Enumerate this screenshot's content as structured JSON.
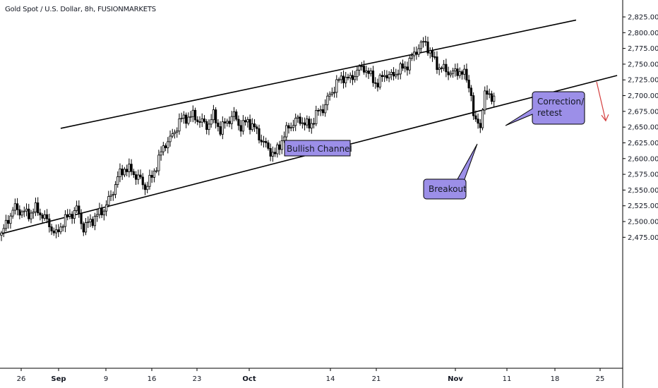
{
  "title": "Gold Spot / U.S. Dollar, 8h, FUSIONMARKETS",
  "colors": {
    "up_body": "#ffffff",
    "down_body": "#000000",
    "outline": "#000000",
    "callout_fill": "#9c8fe8",
    "arrow": "#d43e3e",
    "axis": "#000000"
  },
  "annotations": {
    "bullish_channel": "Bullish Channel",
    "breakout": "Breakout",
    "correction_line1": "Correction/",
    "correction_line2": "retest"
  },
  "chart_data": {
    "type": "candlestick",
    "title": "Gold Spot / U.S. Dollar, 8h, FUSIONMARKETS",
    "ylim": [
      2460,
      2836
    ],
    "y_ticks": [
      "2,475.00",
      "2,500.00",
      "2,525.00",
      "2,550.00",
      "2,575.00",
      "2,600.00",
      "2,625.00",
      "2,650.00",
      "2,675.00",
      "2,700.00",
      "2,725.00",
      "2,750.00",
      "2,775.00",
      "2,800.00",
      "2,825.00"
    ],
    "x_ticks": [
      {
        "label": "26",
        "bold": false
      },
      {
        "label": "Sep",
        "bold": true
      },
      {
        "label": "9",
        "bold": false
      },
      {
        "label": "16",
        "bold": false
      },
      {
        "label": "23",
        "bold": false
      },
      {
        "label": "Oct",
        "bold": true
      },
      {
        "label": "14",
        "bold": false
      },
      {
        "label": "21",
        "bold": false
      },
      {
        "label": "Nov",
        "bold": true
      },
      {
        "label": "11",
        "bold": false
      },
      {
        "label": "18",
        "bold": false
      },
      {
        "label": "25",
        "bold": false
      }
    ],
    "waypoints": [
      [
        0,
        2478
      ],
      [
        3,
        2505
      ],
      [
        6,
        2522
      ],
      [
        9,
        2515
      ],
      [
        12,
        2512
      ],
      [
        15,
        2520
      ],
      [
        18,
        2510
      ],
      [
        21,
        2495
      ],
      [
        24,
        2478
      ],
      [
        27,
        2500
      ],
      [
        30,
        2510
      ],
      [
        33,
        2520
      ],
      [
        36,
        2490
      ],
      [
        39,
        2500
      ],
      [
        42,
        2510
      ],
      [
        45,
        2520
      ],
      [
        48,
        2540
      ],
      [
        51,
        2570
      ],
      [
        54,
        2585
      ],
      [
        57,
        2580
      ],
      [
        60,
        2570
      ],
      [
        63,
        2555
      ],
      [
        66,
        2570
      ],
      [
        69,
        2600
      ],
      [
        72,
        2625
      ],
      [
        75,
        2635
      ],
      [
        78,
        2660
      ],
      [
        81,
        2665
      ],
      [
        84,
        2668
      ],
      [
        87,
        2660
      ],
      [
        90,
        2652
      ],
      [
        93,
        2668
      ],
      [
        96,
        2645
      ],
      [
        99,
        2660
      ],
      [
        102,
        2668
      ],
      [
        105,
        2650
      ],
      [
        108,
        2660
      ],
      [
        111,
        2648
      ],
      [
        114,
        2630
      ],
      [
        117,
        2615
      ],
      [
        120,
        2606
      ],
      [
        123,
        2630
      ],
      [
        126,
        2650
      ],
      [
        129,
        2660
      ],
      [
        132,
        2660
      ],
      [
        135,
        2650
      ],
      [
        138,
        2670
      ],
      [
        141,
        2680
      ],
      [
        144,
        2700
      ],
      [
        147,
        2720
      ],
      [
        150,
        2730
      ],
      [
        153,
        2725
      ],
      [
        156,
        2740
      ],
      [
        159,
        2745
      ],
      [
        162,
        2730
      ],
      [
        165,
        2718
      ],
      [
        168,
        2735
      ],
      [
        171,
        2730
      ],
      [
        174,
        2740
      ],
      [
        177,
        2745
      ],
      [
        180,
        2760
      ],
      [
        183,
        2778
      ],
      [
        186,
        2785
      ],
      [
        189,
        2760
      ],
      [
        192,
        2745
      ],
      [
        195,
        2740
      ],
      [
        198,
        2735
      ],
      [
        201,
        2740
      ],
      [
        204,
        2728
      ],
      [
        206,
        2700
      ],
      [
        208,
        2660
      ],
      [
        210,
        2655
      ],
      [
        212,
        2700
      ],
      [
        214,
        2705
      ],
      [
        216,
        2692
      ]
    ],
    "channel_upper": [
      [
        26,
        2648
      ],
      [
        252,
        2820
      ]
    ],
    "channel_lower": [
      [
        -6,
        2475
      ],
      [
        270,
        2732
      ]
    ],
    "projection_arrow": [
      [
        261,
        2722
      ],
      [
        265,
        2660
      ]
    ]
  }
}
